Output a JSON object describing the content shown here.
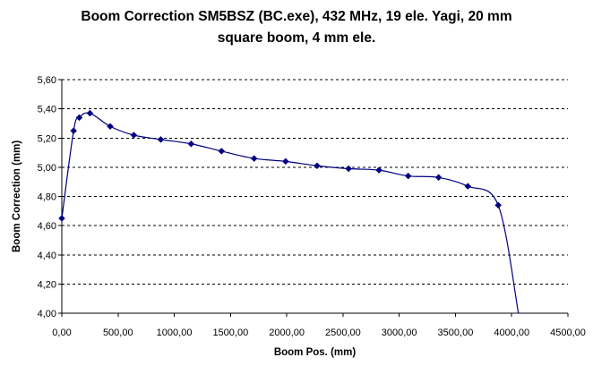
{
  "chart_data": {
    "type": "line",
    "title": "Boom Correction SM5BSZ (BC.exe), 432 MHz, 19 ele. Yagi, 20 mm square boom, 4 mm ele.",
    "title_lines": [
      "Boom Correction SM5BSZ (BC.exe), 432 MHz, 19 ele. Yagi, 20 mm",
      "square boom, 4 mm ele."
    ],
    "xlabel": "Boom Pos. (mm)",
    "ylabel": "Boom Correction (mm)",
    "xlim": [
      0,
      4500
    ],
    "ylim": [
      4.0,
      5.6
    ],
    "x_ticks": [
      "0,00",
      "500,00",
      "1000,00",
      "1500,00",
      "2000,00",
      "2500,00",
      "3000,00",
      "3500,00",
      "4000,00",
      "4500,00"
    ],
    "y_ticks": [
      "4,00",
      "4,20",
      "4,40",
      "4,60",
      "4,80",
      "5,00",
      "5,20",
      "5,40",
      "5,60"
    ],
    "grid": "horizontal dashed",
    "line_color": "#000080",
    "marker_color": "#000080",
    "series": [
      {
        "points": [
          [
            0,
            4.65
          ],
          [
            105,
            5.25
          ],
          [
            155,
            5.34
          ],
          [
            250,
            5.37
          ],
          [
            430,
            5.28
          ],
          [
            640,
            5.22
          ],
          [
            880,
            5.19
          ],
          [
            1150,
            5.16
          ],
          [
            1420,
            5.11
          ],
          [
            1710,
            5.06
          ],
          [
            1990,
            5.04
          ],
          [
            2270,
            5.01
          ],
          [
            2550,
            4.99
          ],
          [
            2820,
            4.98
          ],
          [
            3080,
            4.94
          ],
          [
            3350,
            4.93
          ],
          [
            3610,
            4.87
          ],
          [
            3880,
            4.74
          ]
        ],
        "curve_end": [
          4060,
          4.0
        ]
      }
    ]
  }
}
